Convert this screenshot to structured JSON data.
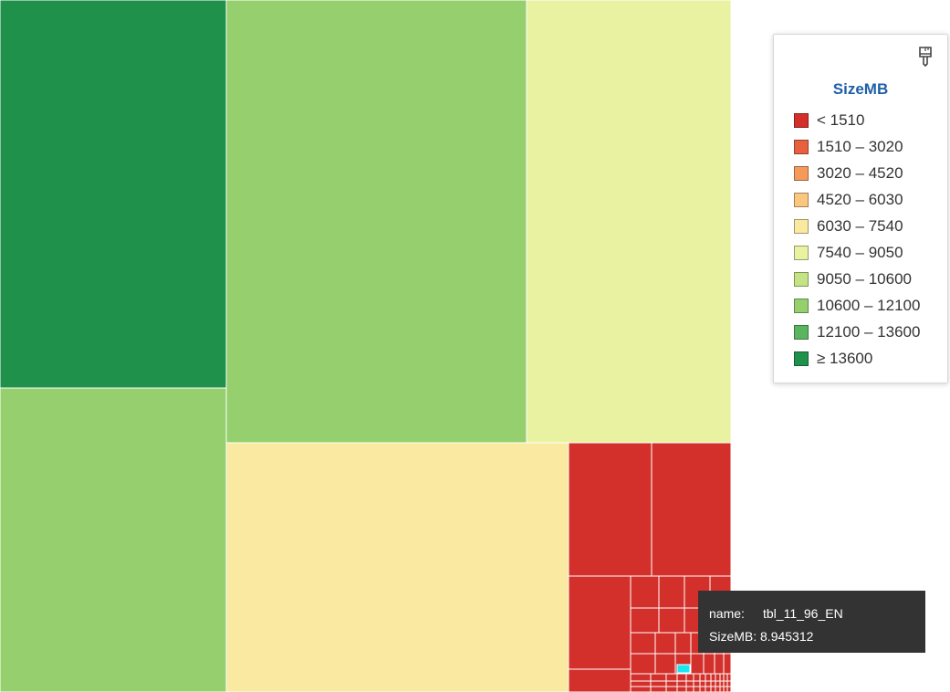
{
  "chart_data": {
    "type": "treemap",
    "value_field": "SizeMB",
    "legend": {
      "title": "SizeMB",
      "bins": [
        {
          "label": "< 1510",
          "color": "#d3302b"
        },
        {
          "label": "1510 – 3020",
          "color": "#e8613f"
        },
        {
          "label": "3020 – 4520",
          "color": "#f59a5b"
        },
        {
          "label": "4520 – 6030",
          "color": "#f9c77f"
        },
        {
          "label": "6030 – 7540",
          "color": "#fae9a0"
        },
        {
          "label": "7540 – 9050",
          "color": "#e9f2a1"
        },
        {
          "label": "9050 – 10600",
          "color": "#c4e384"
        },
        {
          "label": "10600 – 12100",
          "color": "#96d06e"
        },
        {
          "label": "12100 – 13600",
          "color": "#5ab55e"
        },
        {
          "label": "≥ 13600",
          "color": "#1f914a"
        }
      ]
    },
    "tiles": [
      {
        "value": 14300,
        "bin": 9
      },
      {
        "value": 11900,
        "bin": 7
      },
      {
        "value": 11500,
        "bin": 7
      },
      {
        "value": 8700,
        "bin": 5
      },
      {
        "value": 7000,
        "bin": 4
      },
      {
        "value": 1000,
        "bin": 0
      },
      {
        "value": 900,
        "bin": 0
      },
      {
        "value": 600,
        "bin": 0
      },
      {
        "value": 500,
        "bin": 0
      }
    ],
    "small_tiles_bin": 0,
    "highlight_color": "#19e6f0"
  },
  "tooltip": {
    "name_key": "name:",
    "name_value": "tbl_11_96_EN",
    "size_key": "SizeMB:",
    "size_value": "8.945312"
  },
  "icons": {
    "legend_toggle": "paintbrush-icon"
  }
}
